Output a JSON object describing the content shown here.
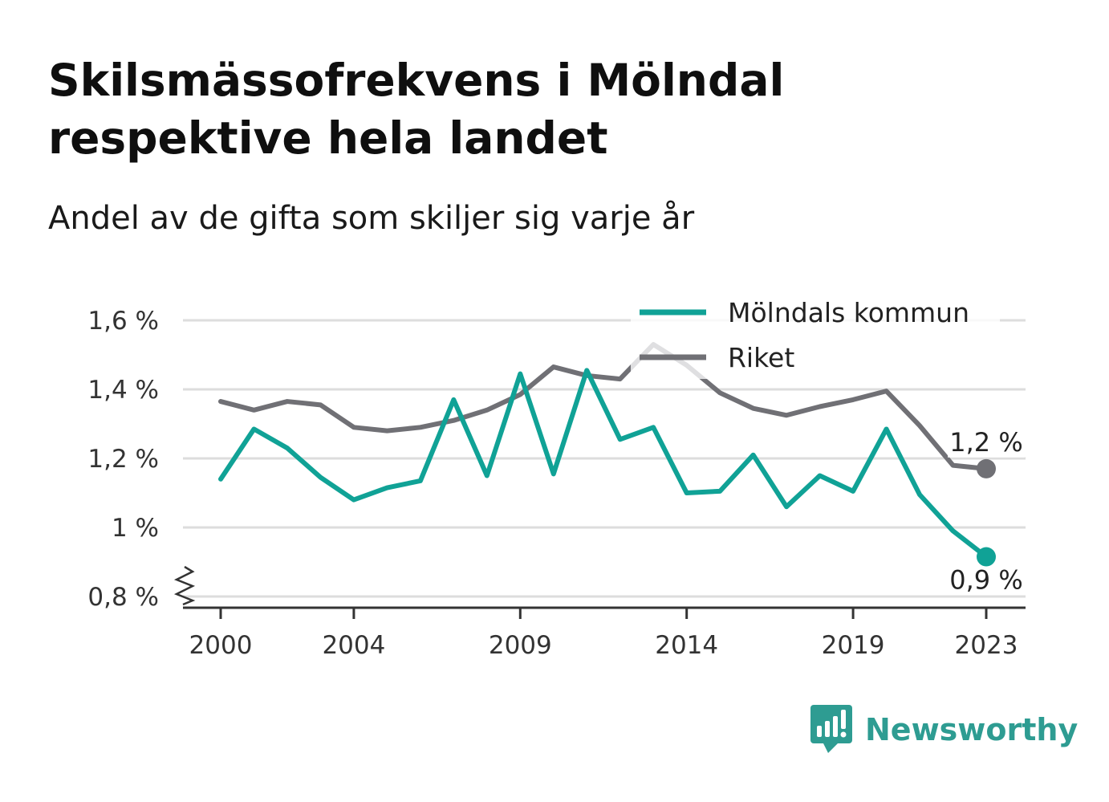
{
  "header": {
    "title": "Skilsmässofrekvens i Mölndal respektive hela landet",
    "subtitle": "Andel av de gifta som skiljer sig varje år"
  },
  "brand": {
    "name": "Newsworthy",
    "icon": "newsworthy-logo-icon",
    "color": "#2e9c92"
  },
  "chart_data": {
    "type": "line",
    "title": "Skilsmässofrekvens i Mölndal respektive hela landet",
    "subtitle": "Andel av de gifta som skiljer sig varje år",
    "xlabel": "",
    "ylabel": "",
    "ylim": [
      0.8,
      1.6
    ],
    "y_ticks": [
      0.8,
      1.0,
      1.2,
      1.4,
      1.6
    ],
    "y_tick_labels": [
      "0,8 %",
      "1 %",
      "1,2 %",
      "1,4 %",
      "1,6 %"
    ],
    "x_ticks": [
      2000,
      2004,
      2009,
      2014,
      2019,
      2023
    ],
    "x_tick_labels": [
      "2000",
      "2004",
      "2009",
      "2014",
      "2019",
      "2023"
    ],
    "grid": "horizontal",
    "axis_break": true,
    "legend_position": "top-right",
    "x": [
      2000,
      2001,
      2002,
      2003,
      2004,
      2005,
      2006,
      2007,
      2008,
      2009,
      2010,
      2011,
      2012,
      2013,
      2014,
      2015,
      2016,
      2017,
      2018,
      2019,
      2020,
      2021,
      2022,
      2023
    ],
    "series": [
      {
        "name": "Mölndals kommun",
        "color": "#10a296",
        "values": [
          1.14,
          1.285,
          1.23,
          1.145,
          1.08,
          1.115,
          1.135,
          1.37,
          1.15,
          1.445,
          1.155,
          1.455,
          1.255,
          1.29,
          1.1,
          1.105,
          1.21,
          1.06,
          1.15,
          1.105,
          1.285,
          1.095,
          0.99,
          0.915
        ],
        "end_label": "0,9 %"
      },
      {
        "name": "Riket",
        "color": "#707075",
        "values": [
          1.365,
          1.34,
          1.365,
          1.355,
          1.29,
          1.28,
          1.29,
          1.31,
          1.34,
          1.385,
          1.465,
          1.44,
          1.43,
          1.53,
          1.47,
          1.39,
          1.345,
          1.325,
          1.35,
          1.37,
          1.395,
          1.295,
          1.18,
          1.17
        ],
        "end_label": "1,2 %"
      }
    ]
  }
}
